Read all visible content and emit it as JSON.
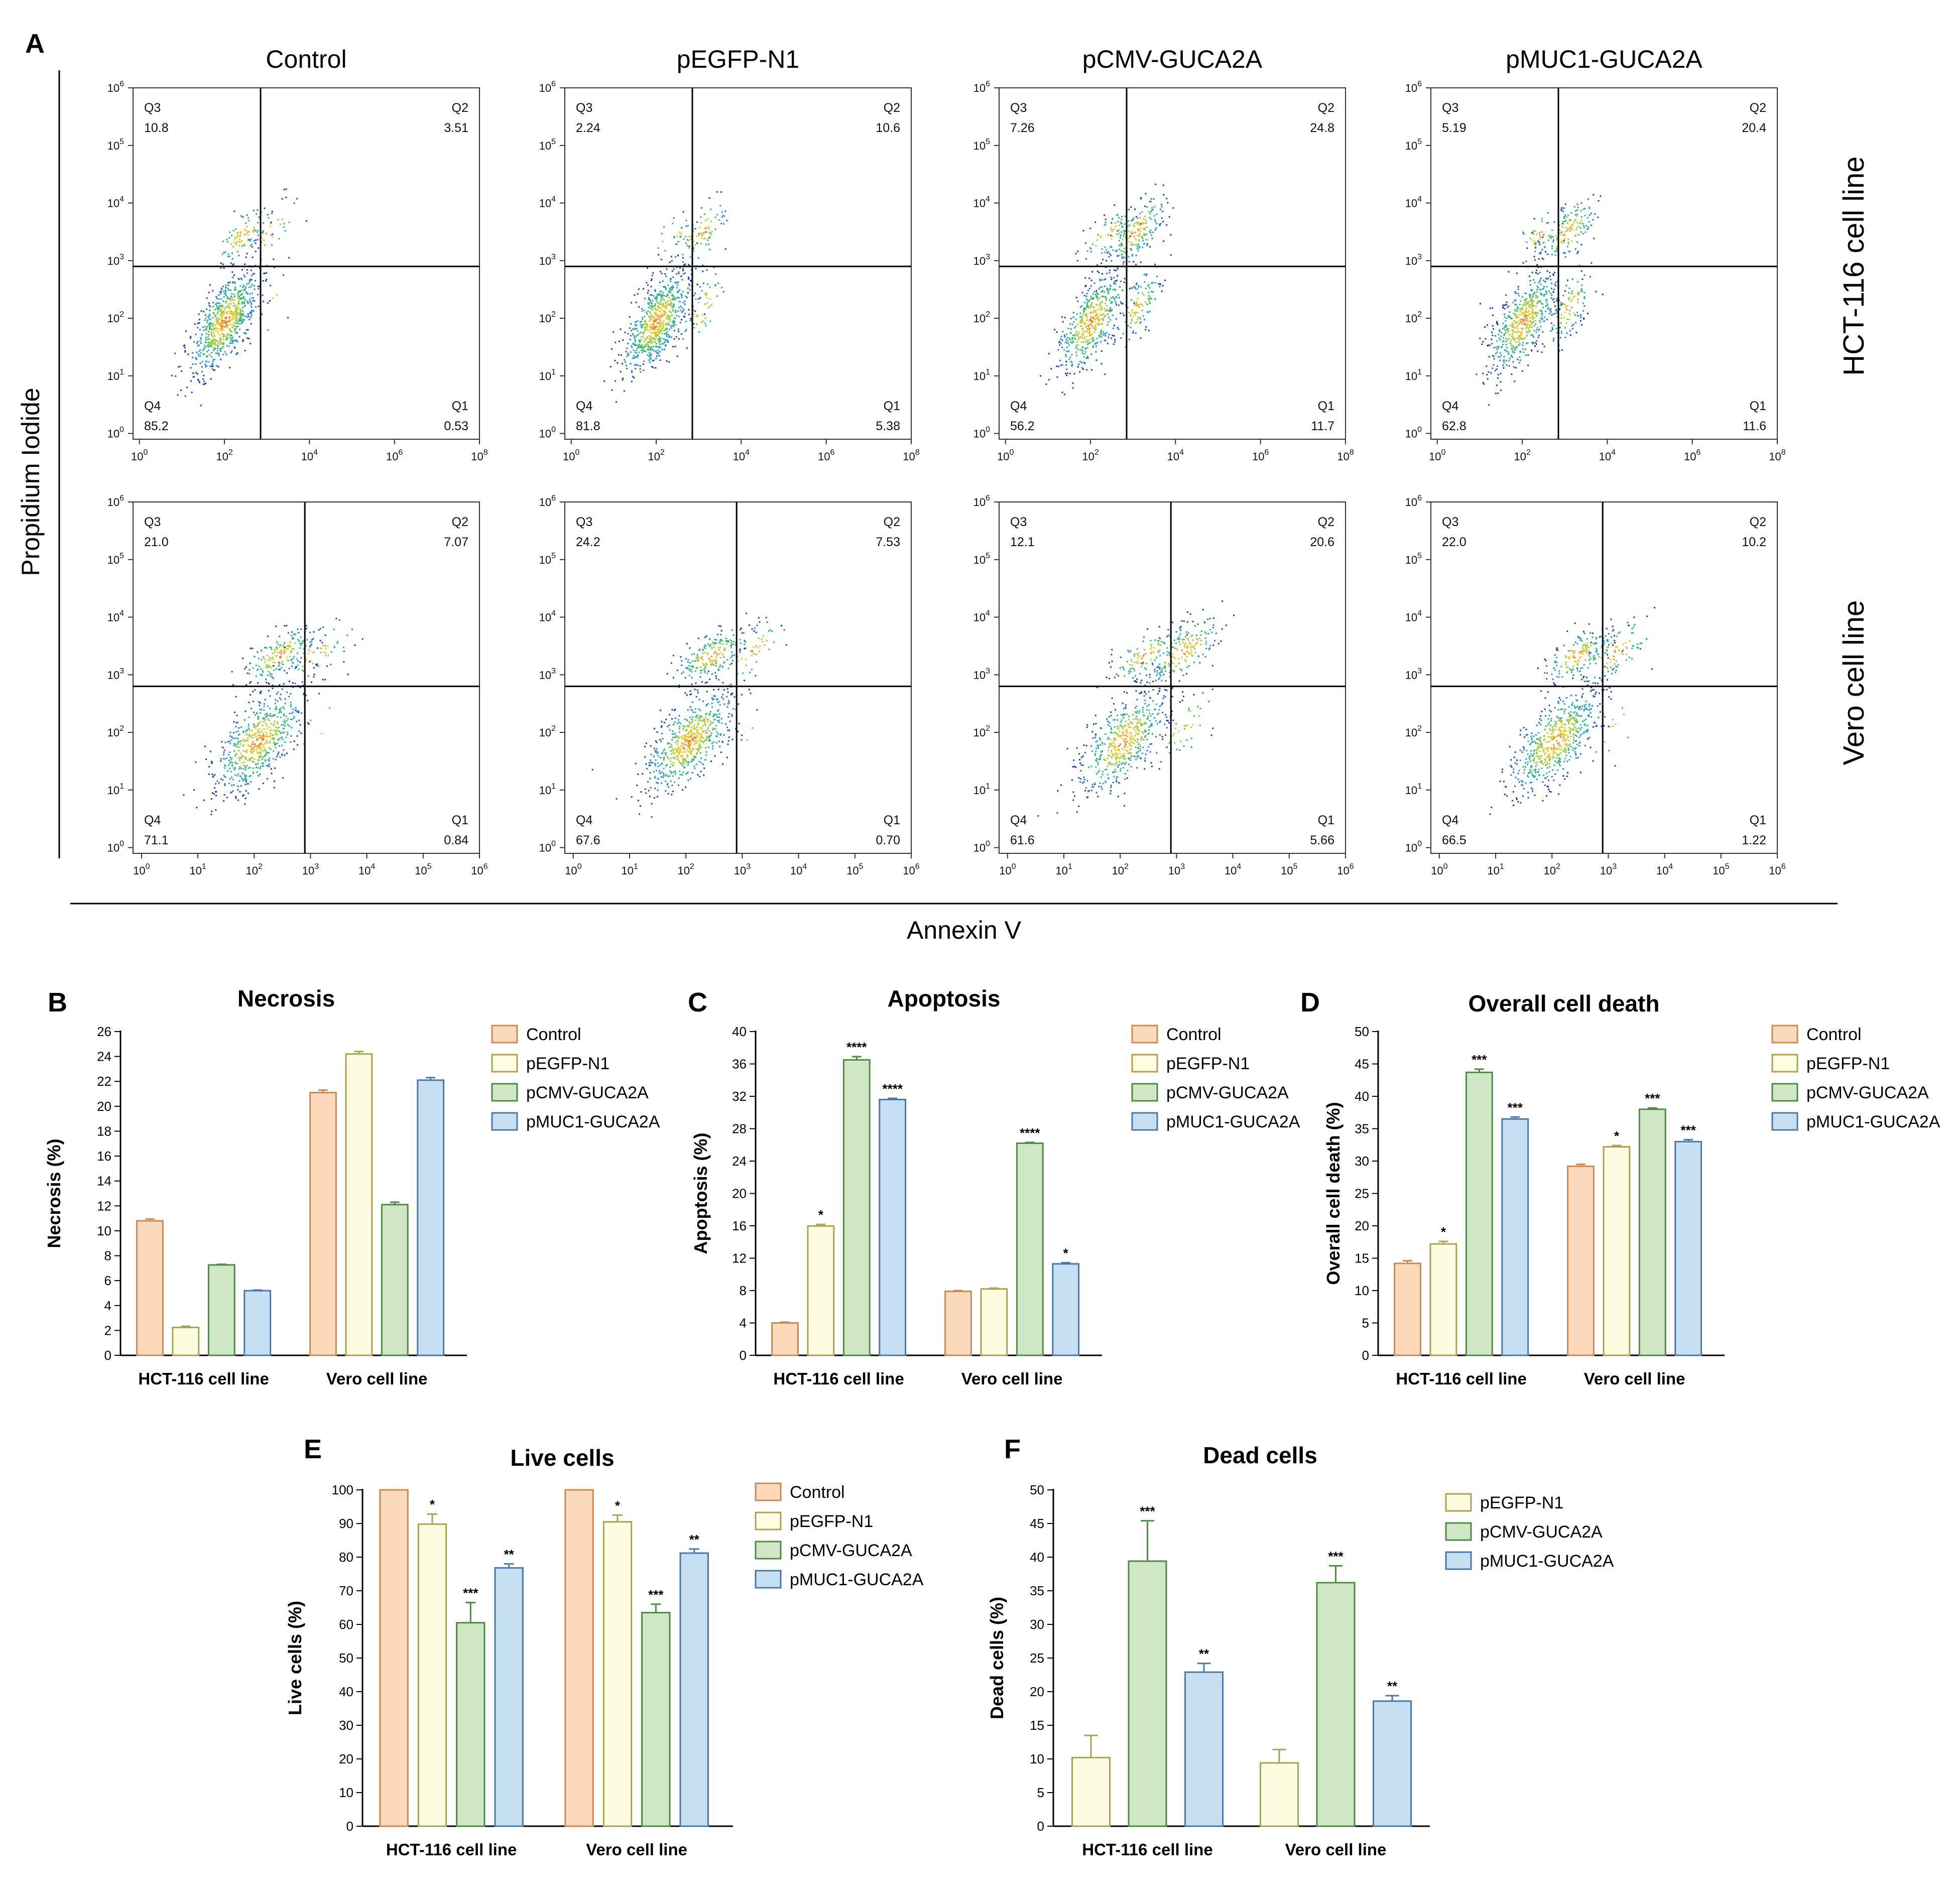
{
  "figure": {
    "panel_a_letter": "A",
    "y_axis_title": "Propidium Iodide",
    "x_axis_title": "Annexin V",
    "columns": [
      "Control",
      "pEGFP-N1",
      "pCMV-GUCA2A",
      "pMUC1-GUCA2A"
    ],
    "rows": [
      "HCT-116 cell line",
      "Vero cell line"
    ]
  },
  "flow_data": {
    "quadrant_names": [
      "Q3",
      "Q2",
      "Q4",
      "Q1"
    ],
    "row_hct_ticks": {
      "x": [
        [
          "10",
          "0"
        ],
        [
          "10",
          "2"
        ],
        [
          "10",
          "4"
        ],
        [
          "10",
          "6"
        ],
        [
          "10",
          "8"
        ]
      ],
      "y": [
        [
          "10",
          "0"
        ],
        [
          "10",
          "1"
        ],
        [
          "10",
          "2"
        ],
        [
          "10",
          "3"
        ],
        [
          "10",
          "4"
        ],
        [
          "10",
          "5"
        ],
        [
          "10",
          "6"
        ]
      ]
    },
    "row_vero_ticks": {
      "x": [
        [
          "10",
          "0"
        ],
        [
          "10",
          "1"
        ],
        [
          "10",
          "2"
        ],
        [
          "10",
          "3"
        ],
        [
          "10",
          "4"
        ],
        [
          "10",
          "5"
        ],
        [
          "10",
          "6"
        ]
      ],
      "y": [
        [
          "10",
          "0"
        ],
        [
          "10",
          "1"
        ],
        [
          "10",
          "2"
        ],
        [
          "10",
          "3"
        ],
        [
          "10",
          "4"
        ],
        [
          "10",
          "5"
        ],
        [
          "10",
          "6"
        ]
      ]
    },
    "plots": [
      {
        "row": 0,
        "col": 0,
        "gate_x_log": 2.85,
        "gate_y_log": 2.9,
        "q3": "10.8",
        "q2": "3.51",
        "q4": "85.2",
        "q1": "0.53"
      },
      {
        "row": 0,
        "col": 1,
        "gate_x_log": 2.85,
        "gate_y_log": 2.9,
        "q3": "2.24",
        "q2": "10.6",
        "q4": "81.8",
        "q1": "5.38"
      },
      {
        "row": 0,
        "col": 2,
        "gate_x_log": 2.85,
        "gate_y_log": 2.9,
        "q3": "7.26",
        "q2": "24.8",
        "q4": "56.2",
        "q1": "11.7"
      },
      {
        "row": 0,
        "col": 3,
        "gate_x_log": 2.85,
        "gate_y_log": 2.9,
        "q3": "5.19",
        "q2": "20.4",
        "q4": "62.8",
        "q1": "11.6"
      },
      {
        "row": 1,
        "col": 0,
        "gate_x_log": 2.9,
        "gate_y_log": 2.8,
        "q3": "21.0",
        "q2": "7.07",
        "q4": "71.1",
        "q1": "0.84"
      },
      {
        "row": 1,
        "col": 1,
        "gate_x_log": 2.9,
        "gate_y_log": 2.8,
        "q3": "24.2",
        "q2": "7.53",
        "q4": "67.6",
        "q1": "0.70"
      },
      {
        "row": 1,
        "col": 2,
        "gate_x_log": 2.9,
        "gate_y_log": 2.8,
        "q3": "12.1",
        "q2": "20.6",
        "q4": "61.6",
        "q1": "5.66"
      },
      {
        "row": 1,
        "col": 3,
        "gate_x_log": 2.9,
        "gate_y_log": 2.8,
        "q3": "22.0",
        "q2": "10.2",
        "q4": "66.5",
        "q1": "1.22"
      }
    ]
  },
  "colors": {
    "Control": {
      "fill": "#fdd9bb",
      "stroke": "#c98a55"
    },
    "pEGFP-N1": {
      "fill": "#fdfce0",
      "stroke": "#a8a255"
    },
    "pCMV-GUCA2A": {
      "fill": "#cfe7c4",
      "stroke": "#4e8a45"
    },
    "pMUC1-GUCA2A": {
      "fill": "#c7dff3",
      "stroke": "#4a78a8"
    }
  },
  "chart_data": [
    {
      "type": "bar",
      "letter": "B",
      "title": "Necrosis",
      "ylabel": "Necrosis (%)",
      "ylim": [
        0,
        26
      ],
      "yticks": [
        0,
        2,
        4,
        6,
        8,
        10,
        12,
        14,
        16,
        18,
        20,
        22,
        24,
        26
      ],
      "categories": [
        "HCT-116 cell line",
        "Vero cell line"
      ],
      "series": [
        {
          "name": "Control",
          "values": [
            10.8,
            21.1
          ],
          "errors": [
            0.15,
            0.2
          ],
          "sig": [
            "",
            ""
          ]
        },
        {
          "name": "pEGFP-N1",
          "values": [
            2.24,
            24.2
          ],
          "errors": [
            0.1,
            0.2
          ],
          "sig": [
            "",
            ""
          ]
        },
        {
          "name": "pCMV-GUCA2A",
          "values": [
            7.26,
            12.1
          ],
          "errors": [
            0.05,
            0.2
          ],
          "sig": [
            "",
            ""
          ]
        },
        {
          "name": "pMUC1-GUCA2A",
          "values": [
            5.19,
            22.1
          ],
          "errors": [
            0.05,
            0.2
          ],
          "sig": [
            "",
            ""
          ]
        }
      ]
    },
    {
      "type": "bar",
      "letter": "C",
      "title": "Apoptosis",
      "ylabel": "Apoptosis (%)",
      "ylim": [
        0,
        40
      ],
      "yticks": [
        0,
        4,
        8,
        12,
        16,
        20,
        24,
        28,
        32,
        36,
        40
      ],
      "categories": [
        "HCT-116 cell line",
        "Vero cell line"
      ],
      "series": [
        {
          "name": "Control",
          "values": [
            4.0,
            7.9
          ],
          "errors": [
            0.1,
            0.1
          ],
          "sig": [
            "",
            ""
          ]
        },
        {
          "name": "pEGFP-N1",
          "values": [
            15.98,
            8.2
          ],
          "errors": [
            0.2,
            0.1
          ],
          "sig": [
            "*",
            ""
          ]
        },
        {
          "name": "pCMV-GUCA2A",
          "values": [
            36.5,
            26.2
          ],
          "errors": [
            0.4,
            0.1
          ],
          "sig": [
            "****",
            "****"
          ]
        },
        {
          "name": "pMUC1-GUCA2A",
          "values": [
            31.6,
            11.3
          ],
          "errors": [
            0.15,
            0.15
          ],
          "sig": [
            "****",
            "*"
          ]
        }
      ]
    },
    {
      "type": "bar",
      "letter": "D",
      "title": "Overall cell death",
      "ylabel": "Overall cell death (%)",
      "ylim": [
        0,
        50
      ],
      "yticks": [
        0,
        5,
        10,
        15,
        20,
        25,
        30,
        35,
        40,
        45,
        50
      ],
      "categories": [
        "HCT-116 cell line",
        "Vero cell line"
      ],
      "series": [
        {
          "name": "Control",
          "values": [
            14.2,
            29.2
          ],
          "errors": [
            0.4,
            0.3
          ],
          "sig": [
            "",
            ""
          ]
        },
        {
          "name": "pEGFP-N1",
          "values": [
            17.2,
            32.2
          ],
          "errors": [
            0.4,
            0.2
          ],
          "sig": [
            "*",
            "*"
          ]
        },
        {
          "name": "pCMV-GUCA2A",
          "values": [
            43.7,
            38.0
          ],
          "errors": [
            0.5,
            0.2
          ],
          "sig": [
            "***",
            "***"
          ]
        },
        {
          "name": "pMUC1-GUCA2A",
          "values": [
            36.5,
            33.0
          ],
          "errors": [
            0.3,
            0.3
          ],
          "sig": [
            "***",
            "***"
          ]
        }
      ]
    },
    {
      "type": "bar",
      "letter": "E",
      "title": "Live cells",
      "ylabel": "Live cells (%)",
      "ylim": [
        0,
        100
      ],
      "yticks": [
        0,
        10,
        20,
        30,
        40,
        50,
        60,
        70,
        80,
        90,
        100
      ],
      "categories": [
        "HCT-116 cell line",
        "Vero cell line"
      ],
      "series": [
        {
          "name": "Control",
          "values": [
            100,
            100
          ],
          "errors": [
            0,
            0
          ],
          "sig": [
            "",
            ""
          ]
        },
        {
          "name": "pEGFP-N1",
          "values": [
            89.8,
            90.5
          ],
          "errors": [
            3.0,
            2.0
          ],
          "sig": [
            "*",
            "*"
          ]
        },
        {
          "name": "pCMV-GUCA2A",
          "values": [
            60.5,
            63.5
          ],
          "errors": [
            6.0,
            2.5
          ],
          "sig": [
            "***",
            "***"
          ]
        },
        {
          "name": "pMUC1-GUCA2A",
          "values": [
            76.8,
            81.2
          ],
          "errors": [
            1.2,
            1.2
          ],
          "sig": [
            "**",
            "**"
          ]
        }
      ]
    },
    {
      "type": "bar",
      "letter": "F",
      "title": "Dead cells",
      "ylabel": "Dead cells (%)",
      "ylim": [
        0,
        50
      ],
      "yticks": [
        0,
        5,
        10,
        15,
        20,
        25,
        30,
        35,
        40,
        45,
        50
      ],
      "categories": [
        "HCT-116 cell line",
        "Vero cell line"
      ],
      "series": [
        {
          "name": "pEGFP-N1",
          "values": [
            10.2,
            9.4
          ],
          "errors": [
            3.3,
            2.0
          ],
          "sig": [
            "",
            ""
          ]
        },
        {
          "name": "pCMV-GUCA2A",
          "values": [
            39.4,
            36.2
          ],
          "errors": [
            6.0,
            2.5
          ],
          "sig": [
            "***",
            "***"
          ]
        },
        {
          "name": "pMUC1-GUCA2A",
          "values": [
            22.9,
            18.6
          ],
          "errors": [
            1.3,
            0.8
          ],
          "sig": [
            "**",
            "**"
          ]
        }
      ]
    }
  ]
}
